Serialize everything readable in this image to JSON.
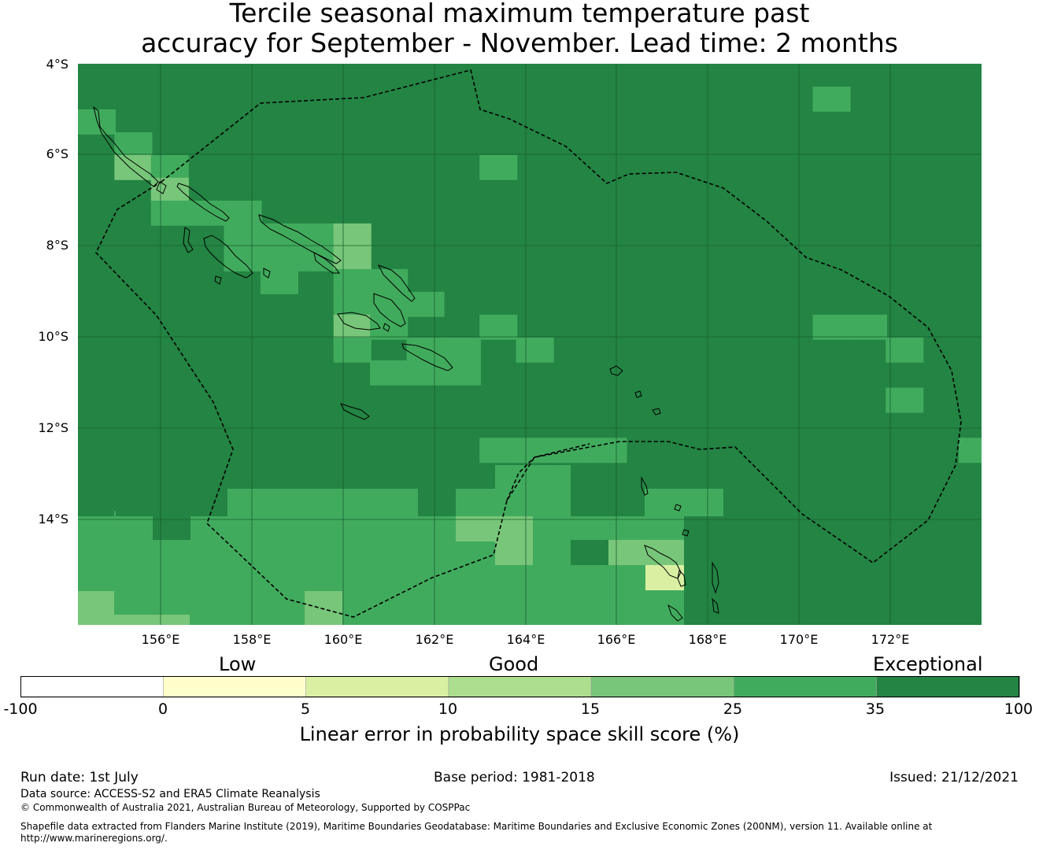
{
  "title_line1": "Tercile seasonal maximum temperature past",
  "title_line2": "accuracy for September - November. Lead time: 2 months",
  "map": {
    "lat_labels": [
      "4°S",
      "6°S",
      "8°S",
      "10°S",
      "12°S",
      "14°S"
    ],
    "lon_labels": [
      "156°E",
      "158°E",
      "160°E",
      "162°E",
      "164°E",
      "166°E",
      "168°E",
      "170°E",
      "172°E"
    ],
    "lat_range_deg_s": [
      4,
      16.3
    ],
    "lon_range_deg_e": [
      154.2,
      174
    ],
    "grid": "on",
    "coastline_color": "#000000",
    "boundary_style": "dashed",
    "background_category": 6,
    "cells": [
      {
        "lon": 154.2,
        "lat": 5.0,
        "cat": 5
      },
      {
        "lon": 155.0,
        "lat": 5.5,
        "cat": 5
      },
      {
        "lon": 155.0,
        "lat": 6.0,
        "cat": 4
      },
      {
        "lon": 155.8,
        "lat": 6.0,
        "cat": 5
      },
      {
        "lon": 155.8,
        "lat": 6.5,
        "cat": 4
      },
      {
        "lon": 155.8,
        "lat": 7.0,
        "cat": 5
      },
      {
        "lon": 156.6,
        "lat": 7.0,
        "cat": 5
      },
      {
        "lon": 157.4,
        "lat": 7.0,
        "cat": 5
      },
      {
        "lon": 157.4,
        "lat": 7.5,
        "cat": 5
      },
      {
        "lon": 158.2,
        "lat": 7.5,
        "cat": 5
      },
      {
        "lon": 159.0,
        "lat": 7.5,
        "cat": 5
      },
      {
        "lon": 159.0,
        "lat": 8.0,
        "cat": 5
      },
      {
        "lon": 159.8,
        "lat": 7.5,
        "cat": 4
      },
      {
        "lon": 159.8,
        "lat": 8.0,
        "cat": 4
      },
      {
        "lon": 157.4,
        "lat": 8.0,
        "cat": 5
      },
      {
        "lon": 158.2,
        "lat": 8.0,
        "cat": 5
      },
      {
        "lon": 158.2,
        "lat": 8.5,
        "cat": 5
      },
      {
        "lon": 159.8,
        "lat": 8.5,
        "cat": 5
      },
      {
        "lon": 160.6,
        "lat": 8.5,
        "cat": 5
      },
      {
        "lon": 159.8,
        "lat": 9.0,
        "cat": 5
      },
      {
        "lon": 160.6,
        "lat": 9.0,
        "cat": 5
      },
      {
        "lon": 161.4,
        "lat": 9.0,
        "cat": 5
      },
      {
        "lon": 159.8,
        "lat": 9.5,
        "cat": 4
      },
      {
        "lon": 160.6,
        "lat": 9.5,
        "cat": 5
      },
      {
        "lon": 159.8,
        "lat": 10.0,
        "cat": 5
      },
      {
        "lon": 161.4,
        "lat": 10.0,
        "cat": 5
      },
      {
        "lon": 162.2,
        "lat": 10.0,
        "cat": 5
      },
      {
        "lon": 160.6,
        "lat": 10.5,
        "cat": 5
      },
      {
        "lon": 161.4,
        "lat": 10.5,
        "cat": 5
      },
      {
        "lon": 162.2,
        "lat": 10.5,
        "cat": 5
      },
      {
        "lon": 163.0,
        "lat": 6.0,
        "cat": 5
      },
      {
        "lon": 163.0,
        "lat": 9.5,
        "cat": 5
      },
      {
        "lon": 163.8,
        "lat": 10.0,
        "cat": 5
      },
      {
        "lon": 170.3,
        "lat": 4.5,
        "cat": 5
      },
      {
        "lon": 170.3,
        "lat": 9.5,
        "cat": 5
      },
      {
        "lon": 171.1,
        "lat": 9.5,
        "cat": 5
      },
      {
        "lon": 171.9,
        "lat": 10.0,
        "cat": 5
      },
      {
        "lon": 171.9,
        "lat": 11.1,
        "cat": 5
      },
      {
        "lon": 173.5,
        "lat": 12.2,
        "cat": 5
      }
    ],
    "south_band": [
      {
        "lon": 154.2,
        "lat": 13.8,
        "cat": 5
      },
      {
        "lon": 163.0,
        "lat": 12.2,
        "cat": 5
      },
      {
        "lon": 163.8,
        "lat": 12.2,
        "cat": 5
      },
      {
        "lon": 164.6,
        "lat": 12.2,
        "cat": 5
      },
      {
        "lon": 165.4,
        "lat": 12.2,
        "cat": 5
      }
    ]
  },
  "colorbar": {
    "category_labels": {
      "low": "Low",
      "good": "Good",
      "exceptional": "Exceptional"
    },
    "ticks": [
      "-100",
      "0",
      "5",
      "10",
      "15",
      "25",
      "35",
      "100"
    ],
    "colors": [
      "#ffffff",
      "#ffffcc",
      "#d9f0a3",
      "#addd8e",
      "#78c679",
      "#41ab5d",
      "#238443"
    ],
    "label": "Linear error in probability space skill score (%)"
  },
  "footer": {
    "run_date": "Run date: 1st July",
    "base_period": "Base period: 1981-2018",
    "issued": "Issued: 21/12/2021",
    "data_source": "Data source: ACCESS-S2 and ERA5 Climate Reanalysis",
    "copyright": "© Commonwealth of Australia 2021, Australian Bureau of Meteorology, Supported by COSPPac",
    "shapefile_line1": "Shapefile data extracted from Flanders Marine Institute (2019), Maritime Boundaries Geodatabase: Maritime Boundaries and Exclusive Economic Zones (200NM), version 11. Available online at",
    "shapefile_line2": "http://www.marineregions.org/."
  }
}
